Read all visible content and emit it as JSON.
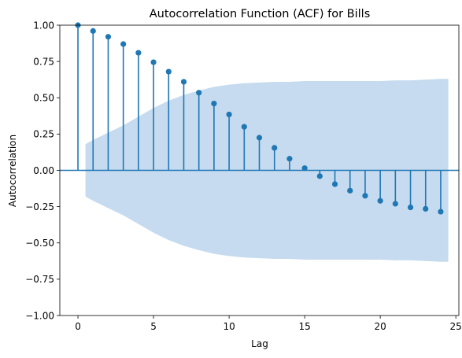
{
  "chart_data": {
    "type": "scatter",
    "subtype": "acf-stem",
    "title": "Autocorrelation Function (ACF) for Bills",
    "xlabel": "Lag",
    "ylabel": "Autocorrelation",
    "xlim": [
      -1.2,
      25.2
    ],
    "ylim": [
      -1.0,
      1.0
    ],
    "x_ticks": [
      0,
      5,
      10,
      15,
      20,
      25
    ],
    "x_tick_labels": [
      "0",
      "5",
      "10",
      "15",
      "20",
      "25"
    ],
    "y_ticks": [
      -1.0,
      -0.75,
      -0.5,
      -0.25,
      0.0,
      0.25,
      0.5,
      0.75,
      1.0
    ],
    "y_tick_labels": [
      "−1.00",
      "−0.75",
      "−0.50",
      "−0.25",
      "0.00",
      "0.25",
      "0.50",
      "0.75",
      "1.00"
    ],
    "grid": false,
    "colors": {
      "stem": "#1f77b4",
      "band": "#c6dbef"
    },
    "lags": [
      0,
      1,
      2,
      3,
      4,
      5,
      6,
      7,
      8,
      9,
      10,
      11,
      12,
      13,
      14,
      15,
      16,
      17,
      18,
      19,
      20,
      21,
      22,
      23,
      24
    ],
    "values": [
      1.0,
      0.96,
      0.92,
      0.87,
      0.81,
      0.745,
      0.68,
      0.61,
      0.535,
      0.46,
      0.385,
      0.3,
      0.225,
      0.155,
      0.08,
      0.015,
      -0.04,
      -0.095,
      -0.14,
      -0.175,
      -0.21,
      -0.23,
      -0.255,
      -0.265,
      -0.285
    ],
    "confidence_band": {
      "x": [
        0.5,
        1,
        2,
        3,
        4,
        5,
        6,
        7,
        8,
        9,
        10,
        11,
        12,
        13,
        14,
        15,
        16,
        17,
        18,
        19,
        20,
        21,
        22,
        23,
        24,
        24.5
      ],
      "upper": [
        0.18,
        0.21,
        0.26,
        0.31,
        0.37,
        0.43,
        0.48,
        0.52,
        0.55,
        0.575,
        0.59,
        0.6,
        0.605,
        0.61,
        0.61,
        0.615,
        0.615,
        0.615,
        0.615,
        0.615,
        0.615,
        0.62,
        0.62,
        0.625,
        0.63,
        0.63
      ],
      "lower": [
        -0.18,
        -0.21,
        -0.26,
        -0.31,
        -0.37,
        -0.43,
        -0.48,
        -0.52,
        -0.55,
        -0.575,
        -0.59,
        -0.6,
        -0.605,
        -0.61,
        -0.61,
        -0.615,
        -0.615,
        -0.615,
        -0.615,
        -0.615,
        -0.615,
        -0.62,
        -0.62,
        -0.625,
        -0.63,
        -0.63
      ]
    }
  }
}
